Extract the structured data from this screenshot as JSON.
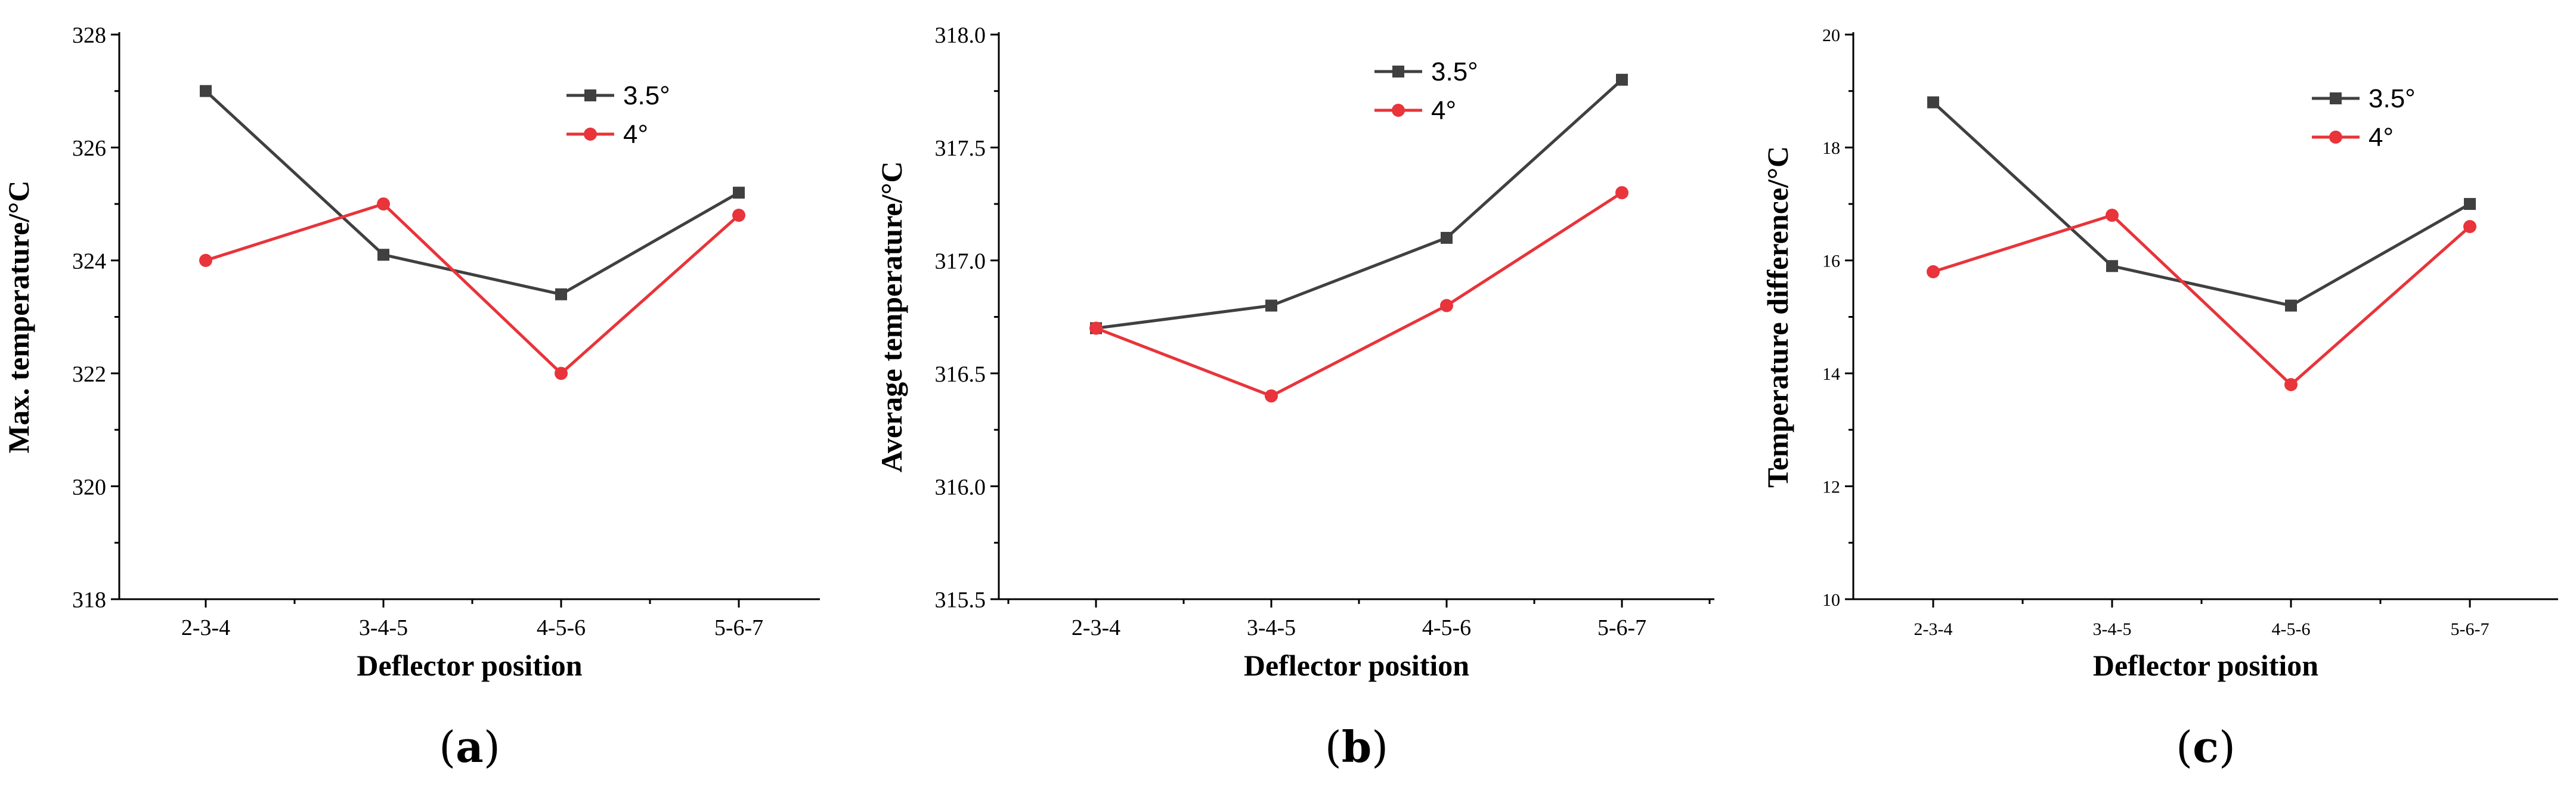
{
  "colors": {
    "series_dark": "#404040",
    "series_red": "#e8343a",
    "axis": "#000000"
  },
  "chart_data": [
    {
      "type": "line",
      "panel_label": "a",
      "categories": [
        "2-3-4",
        "3-4-5",
        "4-5-6",
        "5-6-7"
      ],
      "xlabel": "Deflector position",
      "ylabel": "Max. temperature/°C",
      "ylim": [
        318,
        328
      ],
      "yticks": [
        "318",
        "320",
        "322",
        "324",
        "326",
        "328"
      ],
      "legend_position": "top-right",
      "series": [
        {
          "name": "3.5°",
          "marker": "square",
          "values": [
            327.0,
            324.1,
            323.4,
            325.2
          ]
        },
        {
          "name": "4°",
          "marker": "circle",
          "values": [
            324.0,
            325.0,
            322.0,
            324.8
          ]
        }
      ]
    },
    {
      "type": "line",
      "panel_label": "b",
      "categories": [
        "2-3-4",
        "3-4-5",
        "4-5-6",
        "5-6-7"
      ],
      "xlabel": "Deflector position",
      "ylabel": "Average temperature/°C",
      "ylim": [
        315.5,
        318.0
      ],
      "yticks": [
        "315.5",
        "316.0",
        "316.5",
        "317.0",
        "317.5",
        "318.0"
      ],
      "legend_position": "top-right",
      "series": [
        {
          "name": "3.5°",
          "marker": "square",
          "values": [
            316.7,
            316.8,
            317.1,
            317.8
          ]
        },
        {
          "name": "4°",
          "marker": "circle",
          "values": [
            316.7,
            316.4,
            316.8,
            317.3
          ]
        }
      ]
    },
    {
      "type": "line",
      "panel_label": "c",
      "categories": [
        "2-3-4",
        "3-4-5",
        "4-5-6",
        "5-6-7"
      ],
      "xlabel": "Deflector position",
      "ylabel": "Temperature difference/°C",
      "ylim": [
        10,
        20
      ],
      "yticks": [
        "10",
        "12",
        "14",
        "16",
        "18",
        "20"
      ],
      "legend_position": "top-right",
      "series": [
        {
          "name": "3.5°",
          "marker": "square",
          "values": [
            18.8,
            15.9,
            15.2,
            17.0
          ]
        },
        {
          "name": "4°",
          "marker": "circle",
          "values": [
            15.8,
            16.8,
            13.8,
            16.6
          ]
        }
      ]
    }
  ]
}
